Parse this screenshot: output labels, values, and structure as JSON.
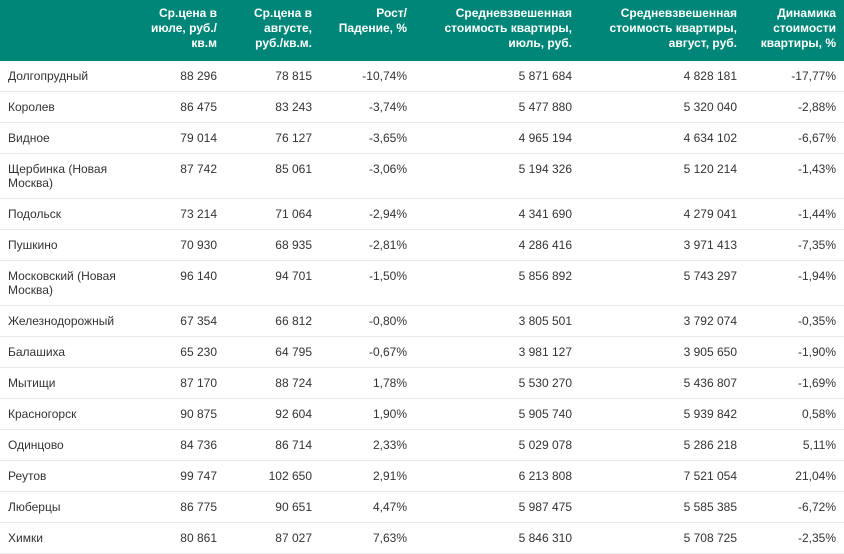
{
  "table": {
    "header_bg": "#008678",
    "header_color": "#ffffff",
    "row_border": "#e9e9e9",
    "text_color": "#333333",
    "columns": [
      "",
      "Ср.цена в июле, руб./кв.м",
      "Ср.цена в августе, руб./кв.м.",
      "Рост/ Падение, %",
      "Средневзвешенная стоимость квартиры, июль, руб.",
      "Средневзвешенная стоимость квартиры, август, руб.",
      "Динамика стоимости квартиры, %"
    ],
    "rows": [
      [
        "Долгопрудный",
        "88 296",
        "78 815",
        "-10,74%",
        "5 871 684",
        "4 828 181",
        "-17,77%"
      ],
      [
        "Королев",
        "86 475",
        "83 243",
        "-3,74%",
        "5 477 880",
        "5 320 040",
        "-2,88%"
      ],
      [
        "Видное",
        "79 014",
        "76 127",
        "-3,65%",
        "4 965 194",
        "4 634 102",
        "-6,67%"
      ],
      [
        "Щербинка (Новая Москва)",
        "87 742",
        "85 061",
        "-3,06%",
        "5 194 326",
        "5 120 214",
        "-1,43%"
      ],
      [
        "Подольск",
        "73 214",
        "71 064",
        "-2,94%",
        "4 341 690",
        "4 279 041",
        "-1,44%"
      ],
      [
        "Пушкино",
        "70 930",
        "68 935",
        "-2,81%",
        "4 286 416",
        "3 971 413",
        "-7,35%"
      ],
      [
        "Московский (Новая Москва)",
        "96 140",
        "94 701",
        "-1,50%",
        "5 856 892",
        "5 743 297",
        "-1,94%"
      ],
      [
        "Железнодорожный",
        "67 354",
        "66 812",
        "-0,80%",
        "3 805 501",
        "3 792 074",
        "-0,35%"
      ],
      [
        "Балашиха",
        "65 230",
        "64 795",
        "-0,67%",
        "3 981 127",
        "3 905 650",
        "-1,90%"
      ],
      [
        "Мытищи",
        "87 170",
        "88 724",
        "1,78%",
        "5 530 270",
        "5 436 807",
        "-1,69%"
      ],
      [
        "Красногорск",
        "90 875",
        "92 604",
        "1,90%",
        "5 905 740",
        "5 939 842",
        "0,58%"
      ],
      [
        "Одинцово",
        "84 736",
        "86 714",
        "2,33%",
        "5 029 078",
        "5 286 218",
        "5,11%"
      ],
      [
        "Реутов",
        "99 747",
        "102 650",
        "2,91%",
        "6 213 808",
        "7 521 054",
        "21,04%"
      ],
      [
        "Люберцы",
        "86 775",
        "90 651",
        "4,47%",
        "5 987 475",
        "5 585 385",
        "-6,72%"
      ],
      [
        "Химки",
        "80 861",
        "87 027",
        "7,63%",
        "5 846 310",
        "5 708 725",
        "-2,35%"
      ]
    ]
  }
}
